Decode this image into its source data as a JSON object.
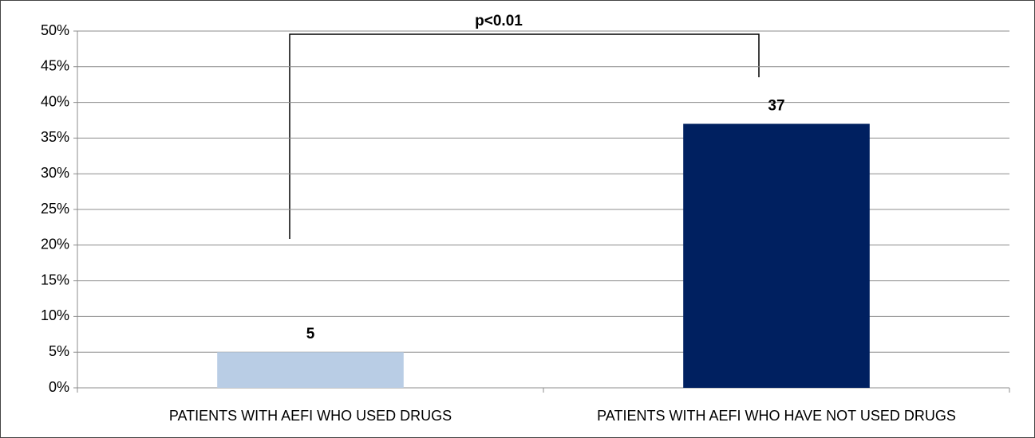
{
  "chart_data": {
    "type": "bar",
    "annotation": "p<0.01",
    "categories": [
      "PATIENTS WITH AEFI WHO USED DRUGS",
      "PATIENTS WITH AEFI WHO HAVE NOT USED DRUGS"
    ],
    "values": [
      5,
      37
    ],
    "colors": [
      "#b9cde5",
      "#002060"
    ],
    "ylim": [
      0,
      50
    ],
    "yticks": [
      {
        "value": 0,
        "label": "0%"
      },
      {
        "value": 5,
        "label": "5%"
      },
      {
        "value": 10,
        "label": "10%"
      },
      {
        "value": 15,
        "label": "15%"
      },
      {
        "value": 20,
        "label": "20%"
      },
      {
        "value": 25,
        "label": "25%"
      },
      {
        "value": 30,
        "label": "30%"
      },
      {
        "value": 35,
        "label": "35%"
      },
      {
        "value": 40,
        "label": "40%"
      },
      {
        "value": 45,
        "label": "45%"
      },
      {
        "value": 50,
        "label": "50%"
      }
    ],
    "grid": true
  }
}
